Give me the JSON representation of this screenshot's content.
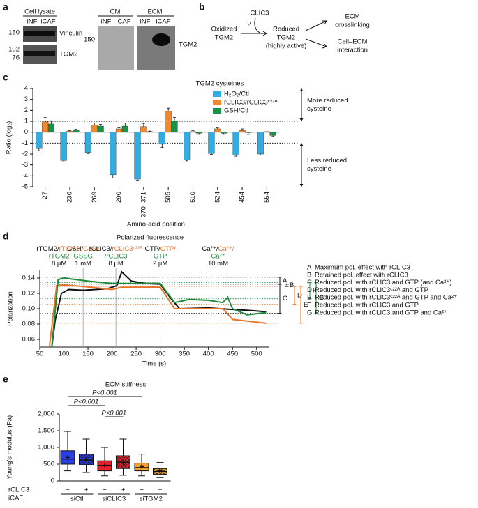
{
  "panel_a": {
    "label": "a",
    "lysate_title": "Cell lysate",
    "lysate_lanes": [
      "iNF",
      "iCAF"
    ],
    "lysate_markers": [
      "150",
      "102",
      "76"
    ],
    "lysate_bands": [
      "Vinculin",
      "TGM2"
    ],
    "cm_title": "CM",
    "cm_lanes": [
      "iNF",
      "iCAF"
    ],
    "ecm_title": "ECM",
    "ecm_lanes": [
      "iNF",
      "iCAF"
    ],
    "cm_marker": "150",
    "ecm_band": "TGM2"
  },
  "panel_b": {
    "label": "b",
    "source": [
      "Oxidized",
      "TGM2"
    ],
    "enzyme": "CLIC3",
    "question": "?",
    "product": [
      "Reduced",
      "TGM2",
      "(highly active)"
    ],
    "outcomes": [
      [
        "ECM",
        "crosslinking"
      ],
      [
        "Cell–ECM",
        "interaction"
      ]
    ]
  },
  "chart_data": [
    {
      "type": "bar",
      "panel_label": "c",
      "title": "TGM2 cysteines",
      "ylabel": "Ratio (log₂)",
      "xlabel": "Amino-acid position",
      "categories": [
        "27",
        "230",
        "269",
        "290",
        "370–371",
        "505",
        "510",
        "524",
        "454",
        "554"
      ],
      "series": [
        {
          "name": "H₂O₂/Ctl",
          "color": "#35ace0",
          "values": [
            -1.5,
            -2.6,
            -1.85,
            -3.9,
            -4.3,
            -1.1,
            -2.55,
            -1.95,
            -2.1,
            -2.0
          ],
          "errors": [
            0.2,
            0.12,
            0.1,
            0.3,
            0.15,
            0.3,
            0.08,
            0.08,
            0.1,
            0.1
          ]
        },
        {
          "name": "rCLIC3/rCLIC3ᶜ²²ᴬ",
          "color": "#f0882e",
          "values": [
            0.95,
            0.1,
            0.65,
            0.3,
            0.5,
            1.9,
            0.05,
            0.3,
            0.15,
            0.05
          ],
          "errors": [
            0.4,
            0.05,
            0.2,
            0.15,
            0.3,
            0.3,
            0.1,
            0.15,
            0.15,
            0.15
          ]
        },
        {
          "name": "GSH/Ctl",
          "color": "#1a9146",
          "values": [
            0.75,
            0.2,
            0.55,
            0.55,
            0.05,
            1.05,
            -0.1,
            -0.1,
            -0.05,
            -0.3
          ],
          "errors": [
            0.3,
            0.06,
            0.15,
            0.3,
            0.05,
            0.3,
            0.1,
            0.1,
            0.15,
            0.1
          ]
        }
      ],
      "ylim": [
        -5,
        4
      ],
      "yticks": [
        -5,
        -4,
        -3,
        -2,
        -1,
        0,
        1,
        2,
        3,
        4
      ],
      "ref_lines": [
        1,
        -1
      ],
      "annotations": [
        [
          "More reduced",
          "cysteine"
        ],
        [
          "Less reduced",
          "cysteine"
        ]
      ]
    },
    {
      "type": "line",
      "panel_label": "d",
      "title": "Polarized fluorescence",
      "xlabel": "Time (s)",
      "ylabel": "Polarization",
      "xlim": [
        50,
        525
      ],
      "xticks": [
        50,
        100,
        150,
        200,
        250,
        300,
        350,
        400,
        450,
        500
      ],
      "ylim": [
        0.05,
        0.15
      ],
      "yticks": [
        0.06,
        0.08,
        {
          "value": 0.1,
          "label": "0.10"
        },
        0.12,
        0.14
      ],
      "series": [
        {
          "color": "#111111",
          "x": [
            75,
            82,
            95,
            110,
            140,
            190,
            210,
            220,
            240,
            270,
            300,
            320,
            340,
            400,
            450,
            480,
            520
          ],
          "values": [
            0.05,
            0.085,
            0.12,
            0.125,
            0.124,
            0.126,
            0.13,
            0.148,
            0.136,
            0.133,
            0.132,
            0.115,
            0.1,
            0.101,
            0.099,
            0.098,
            0.096
          ]
        },
        {
          "color": "#e8742a",
          "x": [
            70,
            85,
            100,
            140,
            200,
            220,
            300,
            330,
            400,
            430,
            450,
            520
          ],
          "values": [
            0.05,
            0.13,
            0.131,
            0.129,
            0.125,
            0.128,
            0.128,
            0.1,
            0.1,
            0.1,
            0.086,
            0.081
          ]
        },
        {
          "color": "#1f8a3c",
          "x": [
            75,
            88,
            100,
            150,
            200,
            300,
            330,
            360,
            400,
            430,
            440,
            450,
            480,
            520
          ],
          "values": [
            0.05,
            0.138,
            0.14,
            0.136,
            0.133,
            0.133,
            0.108,
            0.112,
            0.111,
            0.108,
            0.115,
            0.1,
            0.092,
            0.095
          ]
        }
      ],
      "events": [
        {
          "x": 90,
          "lines": [
            [
              {
                "text": "rTGM2/",
                "color": "#111111"
              },
              {
                "text": "rTGM2/",
                "color": "#e8742a"
              }
            ],
            [
              {
                "text": "rTGM2",
                "color": "#1f8a3c"
              }
            ],
            [
              {
                "text": "8 μM",
                "color": "#111111"
              }
            ]
          ]
        },
        {
          "x": 140,
          "lines": [
            [
              {
                "text": "GSH/",
                "color": "#111111"
              },
              {
                "text": "GSH/",
                "color": "#e8742a"
              }
            ],
            [
              {
                "text": "GSSG",
                "color": "#1f8a3c"
              }
            ],
            [
              {
                "text": "1 mM",
                "color": "#111111"
              }
            ]
          ]
        },
        {
          "x": 208,
          "lines": [
            [
              {
                "text": "rCLIC3/",
                "color": "#111111"
              },
              {
                "text": "rCLIC3ᶜ²²ᴬ",
                "color": "#e8742a"
              }
            ],
            [
              {
                "text": "/rCLIC3",
                "color": "#1f8a3c"
              }
            ],
            [
              {
                "text": "8 μM",
                "color": "#111111"
              }
            ]
          ]
        },
        {
          "x": 300,
          "lines": [
            [
              {
                "text": "GTP/",
                "color": "#111111"
              },
              {
                "text": "GTP/",
                "color": "#e8742a"
              }
            ],
            [
              {
                "text": "GTP",
                "color": "#1f8a3c"
              }
            ],
            [
              {
                "text": "2 μM",
                "color": "#111111"
              }
            ]
          ]
        },
        {
          "x": 420,
          "lines": [
            [
              {
                "text": "Ca²⁺/",
                "color": "#111111"
              },
              {
                "text": "Ca²⁺/",
                "color": "#e8742a"
              }
            ],
            [
              {
                "text": "Ca²⁺",
                "color": "#1f8a3c"
              }
            ],
            [
              {
                "text": "10 mM",
                "color": "#111111"
              }
            ]
          ]
        }
      ],
      "ref_lines": [
        {
          "y": 0.141,
          "color": "#111111"
        },
        {
          "y": 0.132,
          "color": "#111111"
        },
        {
          "y": 0.094,
          "color": "#111111"
        },
        {
          "y": 0.129,
          "color": "#e8742a"
        },
        {
          "y": 0.106,
          "color": "#e8742a"
        },
        {
          "y": 0.081,
          "color": "#e8742a"
        },
        {
          "y": 0.134,
          "color": "#1f8a3c"
        },
        {
          "y": 0.113,
          "color": "#1f8a3c"
        }
      ],
      "brackets": [
        {
          "letter": "A",
          "from": 0.141,
          "to": 0.132,
          "color": "#111111"
        },
        {
          "letter": "B",
          "from": 0.132,
          "to": 0.129,
          "color": "#111111"
        },
        {
          "letter": "C",
          "from": 0.132,
          "to": 0.094,
          "color": "#111111"
        },
        {
          "letter": "D",
          "from": 0.129,
          "to": 0.106,
          "color": "#e8742a"
        },
        {
          "letter": "E",
          "from": 0.129,
          "to": 0.081,
          "color": "#e8742a"
        },
        {
          "letter": "F",
          "from": 0.134,
          "to": 0.113,
          "color": "#1f8a3c"
        },
        {
          "letter": "G",
          "from": 0.134,
          "to": 0.094,
          "color": "#1f8a3c"
        }
      ],
      "legend": [
        {
          "letter": "A",
          "text": "Maximum pol. effect with rCLIC3",
          "color": "#111111"
        },
        {
          "letter": "B",
          "text": "Retained pol. effect with rCLIC3",
          "color": "#111111"
        },
        {
          "letter": "C",
          "text": "Reduced pol. with rCLIC3 and GTP (and Ca²⁺)",
          "color": "#111111"
        },
        {
          "letter": "D",
          "text": "Reduced pol. with rCLIC3ᶜ²²ᴬ and GTP",
          "color": "#e8742a"
        },
        {
          "letter": "E",
          "text": "Reduced pol. with rCLIC3ᶜ²²ᴬ and GTP and Ca²⁺",
          "color": "#e8742a"
        },
        {
          "letter": "F",
          "text": "Reduced pol. with rCLIC3 and GTP",
          "color": "#1f8a3c"
        },
        {
          "letter": "G",
          "text": "Reduced pol. with rCLIC3 and GTP and Ca²⁺",
          "color": "#1f8a3c"
        }
      ]
    },
    {
      "type": "box",
      "panel_label": "e",
      "title": "ECM stiffness",
      "ylabel": "Young's modulus (Pa)",
      "ylim": [
        0,
        2000
      ],
      "yticks": [
        0,
        500,
        {
          "value": 1000,
          "label": "1,000"
        },
        {
          "value": 1500,
          "label": "1,500"
        },
        {
          "value": 2000,
          "label": "2,000"
        }
      ],
      "boxes": [
        {
          "min": 300,
          "q1": 500,
          "median": 650,
          "q3": 900,
          "max": 1480,
          "mean": 700,
          "color": "#2a3fe0",
          "hatched": false
        },
        {
          "min": 250,
          "q1": 480,
          "median": 620,
          "q3": 800,
          "max": 1250,
          "mean": 650,
          "color": "#2a3fe0",
          "hatched": true
        },
        {
          "min": 150,
          "q1": 300,
          "median": 450,
          "q3": 600,
          "max": 1000,
          "mean": 470,
          "color": "#e8202a",
          "hatched": false
        },
        {
          "min": 170,
          "q1": 370,
          "median": 560,
          "q3": 750,
          "max": 1250,
          "mean": 560,
          "color": "#e8202a",
          "hatched": true
        },
        {
          "min": 150,
          "q1": 300,
          "median": 400,
          "q3": 530,
          "max": 800,
          "mean": 430,
          "color": "#f5a030",
          "hatched": false
        },
        {
          "min": 100,
          "q1": 200,
          "median": 280,
          "q3": 370,
          "max": 550,
          "mean": 300,
          "color": "#f5a030",
          "hatched": true
        }
      ],
      "row_labels": [
        "rCLIC3",
        "iCAF"
      ],
      "rclic3": [
        "−",
        "+",
        "−",
        "+",
        "−",
        "+"
      ],
      "groups": [
        "siCtl",
        "siCLIC3",
        "siTGM2"
      ],
      "significance": [
        "P<0.001",
        "P<0.001",
        "P<0.001"
      ]
    }
  ]
}
